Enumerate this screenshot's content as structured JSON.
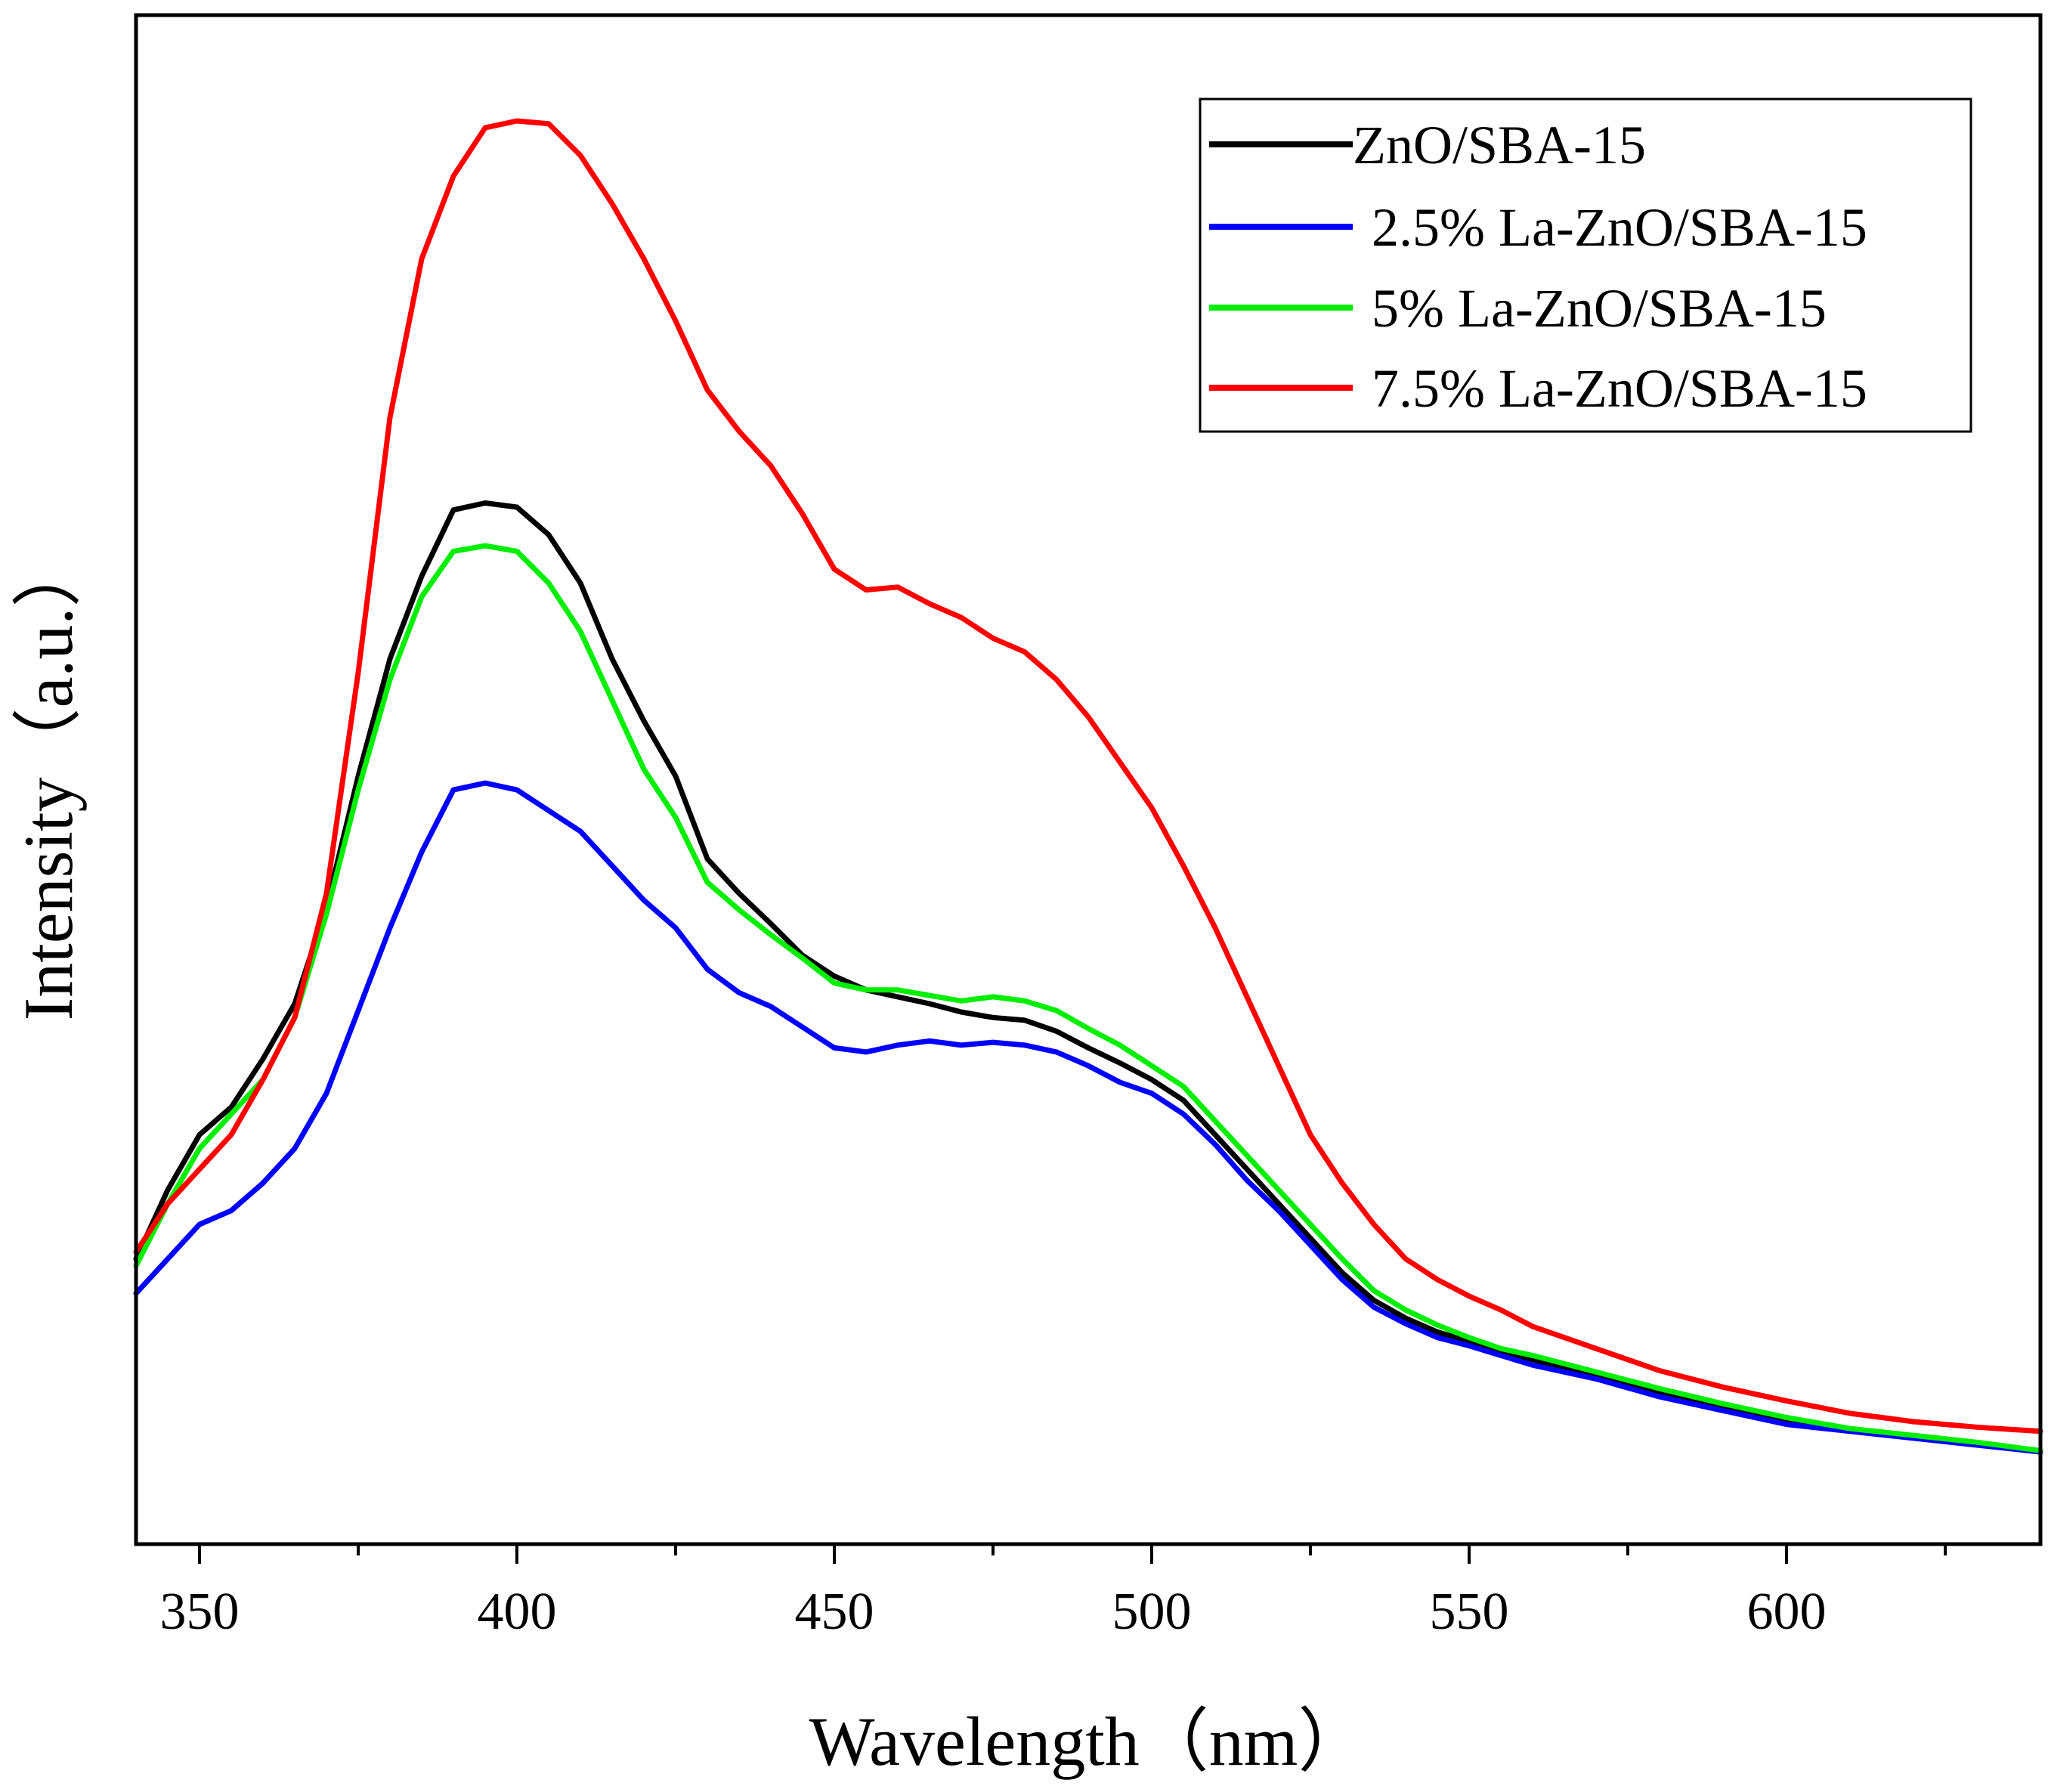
{
  "chart_data": {
    "type": "line",
    "title": "",
    "xlabel": "Wavelength（nm）",
    "ylabel": "Intensity（a.u.）",
    "xlim": [
      340,
      640
    ],
    "ylim": [
      0,
      100
    ],
    "x_ticks": [
      350,
      400,
      450,
      500,
      550,
      600
    ],
    "x_tick_labels": [
      "350",
      "400",
      "450",
      "500",
      "550",
      "600"
    ],
    "y_ticks_shown": false,
    "grid": false,
    "legend_position": "top-right",
    "x": [
      340,
      345,
      350,
      355,
      360,
      365,
      370,
      375,
      380,
      385,
      390,
      395,
      400,
      405,
      410,
      415,
      420,
      425,
      430,
      435,
      440,
      445,
      450,
      455,
      460,
      465,
      470,
      475,
      480,
      485,
      490,
      495,
      500,
      505,
      510,
      515,
      520,
      525,
      530,
      535,
      540,
      545,
      550,
      555,
      560,
      570,
      580,
      590,
      600,
      610,
      620,
      630,
      640
    ],
    "series": [
      {
        "name": "ZnO/SBA-15",
        "color": "#000000",
        "values": [
          17.5,
          22.5,
          26.5,
          28.5,
          32.0,
          36.0,
          43.0,
          52.5,
          61.0,
          67.0,
          71.8,
          72.3,
          72.0,
          70.0,
          66.5,
          61.0,
          56.5,
          52.5,
          46.5,
          44.0,
          41.8,
          39.5,
          38.0,
          37.0,
          36.5,
          36.0,
          35.4,
          35.0,
          34.8,
          34.0,
          32.8,
          31.7,
          30.5,
          29.0,
          26.5,
          24.0,
          21.5,
          19.0,
          16.5,
          14.5,
          13.2,
          12.2,
          11.5,
          10.8,
          10.2,
          9.0,
          7.8,
          6.8,
          5.7,
          5.1,
          4.6,
          4.1,
          3.5
        ]
      },
      {
        "name": "2.5% La-ZnO/SBA-15",
        "color": "#0000ff",
        "values": [
          15.0,
          17.5,
          20.0,
          21.0,
          23.0,
          25.5,
          29.5,
          35.5,
          41.5,
          47.0,
          51.5,
          52.0,
          51.5,
          50.0,
          48.5,
          46.0,
          43.5,
          41.5,
          38.5,
          36.8,
          35.8,
          34.3,
          32.8,
          32.5,
          33.0,
          33.3,
          33.0,
          33.2,
          33.0,
          32.5,
          31.5,
          30.3,
          29.5,
          28.0,
          25.8,
          23.2,
          21.0,
          18.5,
          16.0,
          14.0,
          12.8,
          11.8,
          11.2,
          10.5,
          9.8,
          8.8,
          7.5,
          6.5,
          5.5,
          5.0,
          4.5,
          4.0,
          3.5
        ]
      },
      {
        "name": "5% La-ZnO/SBA-15",
        "color": "#00ee00",
        "values": [
          17.0,
          21.5,
          25.5,
          28.0,
          30.5,
          35.0,
          42.5,
          51.5,
          59.5,
          65.5,
          68.8,
          69.2,
          68.8,
          66.5,
          63.0,
          58.0,
          53.0,
          49.5,
          44.8,
          42.8,
          41.0,
          39.3,
          37.5,
          37.0,
          37.0,
          36.6,
          36.2,
          36.5,
          36.2,
          35.5,
          34.2,
          33.0,
          31.5,
          30.0,
          27.5,
          25.0,
          22.5,
          20.0,
          17.5,
          15.2,
          13.8,
          12.7,
          11.8,
          11.0,
          10.5,
          9.3,
          8.1,
          7.0,
          6.0,
          5.2,
          4.7,
          4.2,
          3.6
        ]
      },
      {
        "name": "7.5% La-ZnO/SBA-15",
        "color": "#ff0000",
        "values": [
          18.0,
          21.5,
          24.0,
          26.5,
          30.5,
          35.0,
          44.0,
          60.0,
          78.5,
          90.0,
          96.0,
          99.5,
          100.0,
          99.8,
          97.5,
          94.0,
          90.0,
          85.5,
          80.5,
          77.5,
          75.0,
          71.5,
          67.5,
          66.0,
          66.2,
          65.0,
          64.0,
          62.5,
          61.5,
          59.5,
          56.8,
          53.5,
          50.2,
          46.0,
          41.5,
          36.5,
          31.5,
          26.5,
          23.0,
          20.0,
          17.5,
          16.0,
          14.8,
          13.8,
          12.6,
          11.0,
          9.4,
          8.2,
          7.2,
          6.3,
          5.7,
          5.3,
          5.0
        ]
      }
    ]
  }
}
